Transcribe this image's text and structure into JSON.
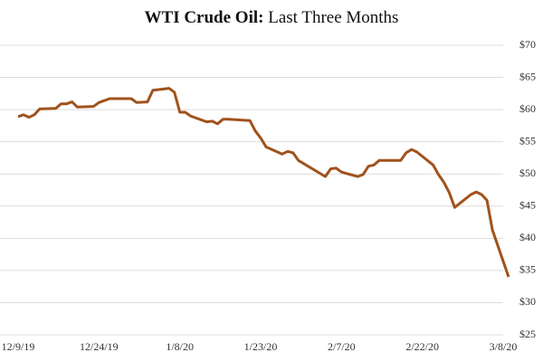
{
  "chart_data": {
    "type": "line",
    "title": "WTI Crude Oil:",
    "subtitle": "Last Three Months",
    "x": [
      "12/9/19",
      "12/10/19",
      "12/11/19",
      "12/12/19",
      "12/13/19",
      "12/16/19",
      "12/17/19",
      "12/18/19",
      "12/19/19",
      "12/20/19",
      "12/23/19",
      "12/24/19",
      "12/26/19",
      "12/27/19",
      "12/30/19",
      "12/31/19",
      "1/2/20",
      "1/3/20",
      "1/6/20",
      "1/7/20",
      "1/8/20",
      "1/9/20",
      "1/10/20",
      "1/13/20",
      "1/14/20",
      "1/15/20",
      "1/16/20",
      "1/17/20",
      "1/21/20",
      "1/22/20",
      "1/23/20",
      "1/24/20",
      "1/27/20",
      "1/28/20",
      "1/29/20",
      "1/30/20",
      "1/31/20",
      "2/3/20",
      "2/4/20",
      "2/5/20",
      "2/6/20",
      "2/7/20",
      "2/10/20",
      "2/11/20",
      "2/12/20",
      "2/13/20",
      "2/14/20",
      "2/18/20",
      "2/19/20",
      "2/20/20",
      "2/21/20",
      "2/24/20",
      "2/25/20",
      "2/26/20",
      "2/27/20",
      "2/28/20",
      "3/2/20",
      "3/3/20",
      "3/4/20",
      "3/5/20",
      "3/6/20",
      "3/9/20"
    ],
    "series": [
      {
        "name": "WTI",
        "color": "#a0521c",
        "values": [
          58.9,
          59.2,
          58.8,
          59.2,
          60.1,
          60.2,
          60.9,
          60.9,
          61.2,
          60.4,
          60.5,
          61.1,
          61.7,
          61.7,
          61.7,
          61.1,
          61.2,
          63.0,
          63.3,
          62.7,
          59.6,
          59.6,
          59.0,
          58.1,
          58.2,
          57.8,
          58.5,
          58.5,
          58.3,
          56.7,
          55.6,
          54.2,
          53.1,
          53.5,
          53.3,
          52.1,
          51.6,
          50.1,
          49.6,
          50.8,
          50.9,
          50.3,
          49.6,
          49.9,
          51.2,
          51.4,
          52.1,
          52.1,
          53.3,
          53.8,
          53.4,
          51.4,
          49.9,
          48.7,
          47.1,
          44.8,
          46.8,
          47.2,
          46.8,
          45.9,
          41.3,
          34.0
        ]
      }
    ],
    "xlim": [
      "12/9/19",
      "3/8/20"
    ],
    "xticks": [
      "12/9/19",
      "12/24/19",
      "1/8/20",
      "1/23/20",
      "2/7/20",
      "2/22/20",
      "3/8/20"
    ],
    "ylim": [
      25,
      70
    ],
    "yticks": [
      {
        "value": 25,
        "label": "$25"
      },
      {
        "value": 30,
        "label": "$30"
      },
      {
        "value": 35,
        "label": "$35"
      },
      {
        "value": 40,
        "label": "$40"
      },
      {
        "value": 45,
        "label": "$45"
      },
      {
        "value": 50,
        "label": "$50"
      },
      {
        "value": 55,
        "label": "$55"
      },
      {
        "value": 60,
        "label": "$60"
      },
      {
        "value": 65,
        "label": "$65"
      },
      {
        "value": 70,
        "label": "$70"
      }
    ],
    "grid": true
  }
}
